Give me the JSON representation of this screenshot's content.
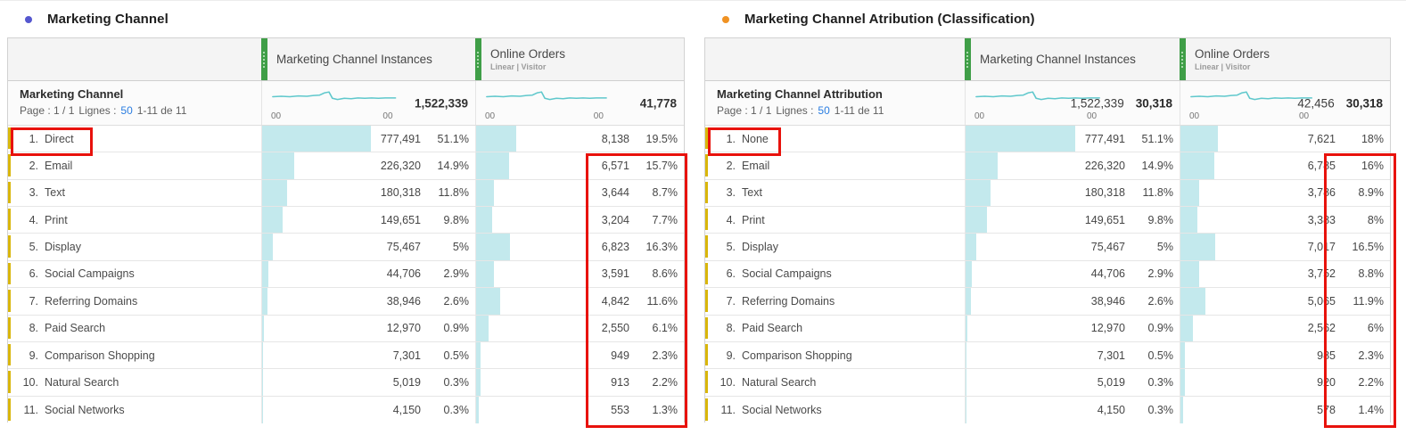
{
  "colors": {
    "left_series_dot": "#5557cf",
    "right_series_dot": "#f09223",
    "bar_fill": "#c3e9ed",
    "sparkline": "#5fc8cc",
    "column_handle_green": "#3f9e47",
    "row_marker_yellow": "#d9b60b",
    "highlight_red": "#e8120c",
    "link_blue": "#2a7de1"
  },
  "panels": [
    {
      "title": "Marketing Channel",
      "table": {
        "dimension_header": {
          "name": "Marketing Channel",
          "page_label": "Page : 1 / 1",
          "rows_label": "Lignes :",
          "rows_per_page": "50",
          "range": "1-11 de 11"
        },
        "columns": [
          {
            "title": "Marketing Channel Instances",
            "subtitle": "",
            "total": "1,522,339",
            "total_secondary": "",
            "spark_start": "00",
            "spark_end": "00"
          },
          {
            "title": "Online Orders",
            "subtitle": "Linear | Visitor",
            "total": "41,778",
            "total_secondary": "",
            "spark_start": "00",
            "spark_end": "00"
          }
        ],
        "rows": [
          {
            "rank": "1.",
            "label": "Direct",
            "instances": {
              "value": "777,491",
              "pct": "51.1%",
              "bar": 51.1
            },
            "orders": {
              "value": "8,138",
              "pct": "19.5%",
              "bar": 19.5
            }
          },
          {
            "rank": "2.",
            "label": "Email",
            "instances": {
              "value": "226,320",
              "pct": "14.9%",
              "bar": 14.9
            },
            "orders": {
              "value": "6,571",
              "pct": "15.7%",
              "bar": 15.7
            }
          },
          {
            "rank": "3.",
            "label": "Text",
            "instances": {
              "value": "180,318",
              "pct": "11.8%",
              "bar": 11.8
            },
            "orders": {
              "value": "3,644",
              "pct": "8.7%",
              "bar": 8.7
            }
          },
          {
            "rank": "4.",
            "label": "Print",
            "instances": {
              "value": "149,651",
              "pct": "9.8%",
              "bar": 9.8
            },
            "orders": {
              "value": "3,204",
              "pct": "7.7%",
              "bar": 7.7
            }
          },
          {
            "rank": "5.",
            "label": "Display",
            "instances": {
              "value": "75,467",
              "pct": "5%",
              "bar": 5
            },
            "orders": {
              "value": "6,823",
              "pct": "16.3%",
              "bar": 16.3
            }
          },
          {
            "rank": "6.",
            "label": "Social Campaigns",
            "instances": {
              "value": "44,706",
              "pct": "2.9%",
              "bar": 2.9
            },
            "orders": {
              "value": "3,591",
              "pct": "8.6%",
              "bar": 8.6
            }
          },
          {
            "rank": "7.",
            "label": "Referring Domains",
            "instances": {
              "value": "38,946",
              "pct": "2.6%",
              "bar": 2.6
            },
            "orders": {
              "value": "4,842",
              "pct": "11.6%",
              "bar": 11.6
            }
          },
          {
            "rank": "8.",
            "label": "Paid Search",
            "instances": {
              "value": "12,970",
              "pct": "0.9%",
              "bar": 0.9
            },
            "orders": {
              "value": "2,550",
              "pct": "6.1%",
              "bar": 6.1
            }
          },
          {
            "rank": "9.",
            "label": "Comparison Shopping",
            "instances": {
              "value": "7,301",
              "pct": "0.5%",
              "bar": 0.5
            },
            "orders": {
              "value": "949",
              "pct": "2.3%",
              "bar": 2.3
            }
          },
          {
            "rank": "10.",
            "label": "Natural Search",
            "instances": {
              "value": "5,019",
              "pct": "0.3%",
              "bar": 0.3
            },
            "orders": {
              "value": "913",
              "pct": "2.2%",
              "bar": 2.2
            }
          },
          {
            "rank": "11.",
            "label": "Social Networks",
            "instances": {
              "value": "4,150",
              "pct": "0.3%",
              "bar": 0.3
            },
            "orders": {
              "value": "553",
              "pct": "1.3%",
              "bar": 1.3
            }
          }
        ]
      }
    },
    {
      "title": "Marketing Channel Atribution (Classification)",
      "table": {
        "dimension_header": {
          "name": "Marketing Channel Attribution",
          "page_label": "Page : 1 / 1",
          "rows_label": "Lignes :",
          "rows_per_page": "50",
          "range": "1-11 de 11"
        },
        "columns": [
          {
            "title": "Marketing Channel Instances",
            "subtitle": "",
            "total": "1,522,339",
            "total_secondary": "30,318",
            "spark_start": "00",
            "spark_end": "00"
          },
          {
            "title": "Online Orders",
            "subtitle": "Linear | Visitor",
            "total": "42,456",
            "total_secondary": "30,318",
            "spark_start": "00",
            "spark_end": "00"
          }
        ],
        "rows": [
          {
            "rank": "1.",
            "label": "None",
            "instances": {
              "value": "777,491",
              "pct": "51.1%",
              "bar": 51.1
            },
            "orders": {
              "value": "7,621",
              "pct": "18%",
              "bar": 18
            }
          },
          {
            "rank": "2.",
            "label": "Email",
            "instances": {
              "value": "226,320",
              "pct": "14.9%",
              "bar": 14.9
            },
            "orders": {
              "value": "6,785",
              "pct": "16%",
              "bar": 16
            }
          },
          {
            "rank": "3.",
            "label": "Text",
            "instances": {
              "value": "180,318",
              "pct": "11.8%",
              "bar": 11.8
            },
            "orders": {
              "value": "3,786",
              "pct": "8.9%",
              "bar": 8.9
            }
          },
          {
            "rank": "4.",
            "label": "Print",
            "instances": {
              "value": "149,651",
              "pct": "9.8%",
              "bar": 9.8
            },
            "orders": {
              "value": "3,383",
              "pct": "8%",
              "bar": 8
            }
          },
          {
            "rank": "5.",
            "label": "Display",
            "instances": {
              "value": "75,467",
              "pct": "5%",
              "bar": 5
            },
            "orders": {
              "value": "7,017",
              "pct": "16.5%",
              "bar": 16.5
            }
          },
          {
            "rank": "6.",
            "label": "Social Campaigns",
            "instances": {
              "value": "44,706",
              "pct": "2.9%",
              "bar": 2.9
            },
            "orders": {
              "value": "3,752",
              "pct": "8.8%",
              "bar": 8.8
            }
          },
          {
            "rank": "7.",
            "label": "Referring Domains",
            "instances": {
              "value": "38,946",
              "pct": "2.6%",
              "bar": 2.6
            },
            "orders": {
              "value": "5,065",
              "pct": "11.9%",
              "bar": 11.9
            }
          },
          {
            "rank": "8.",
            "label": "Paid Search",
            "instances": {
              "value": "12,970",
              "pct": "0.9%",
              "bar": 0.9
            },
            "orders": {
              "value": "2,562",
              "pct": "6%",
              "bar": 6
            }
          },
          {
            "rank": "9.",
            "label": "Comparison Shopping",
            "instances": {
              "value": "7,301",
              "pct": "0.5%",
              "bar": 0.5
            },
            "orders": {
              "value": "985",
              "pct": "2.3%",
              "bar": 2.3
            }
          },
          {
            "rank": "10.",
            "label": "Natural Search",
            "instances": {
              "value": "5,019",
              "pct": "0.3%",
              "bar": 0.3
            },
            "orders": {
              "value": "920",
              "pct": "2.2%",
              "bar": 2.2
            }
          },
          {
            "rank": "11.",
            "label": "Social Networks",
            "instances": {
              "value": "4,150",
              "pct": "0.3%",
              "bar": 0.3
            },
            "orders": {
              "value": "578",
              "pct": "1.4%",
              "bar": 1.4
            }
          }
        ]
      }
    }
  ]
}
